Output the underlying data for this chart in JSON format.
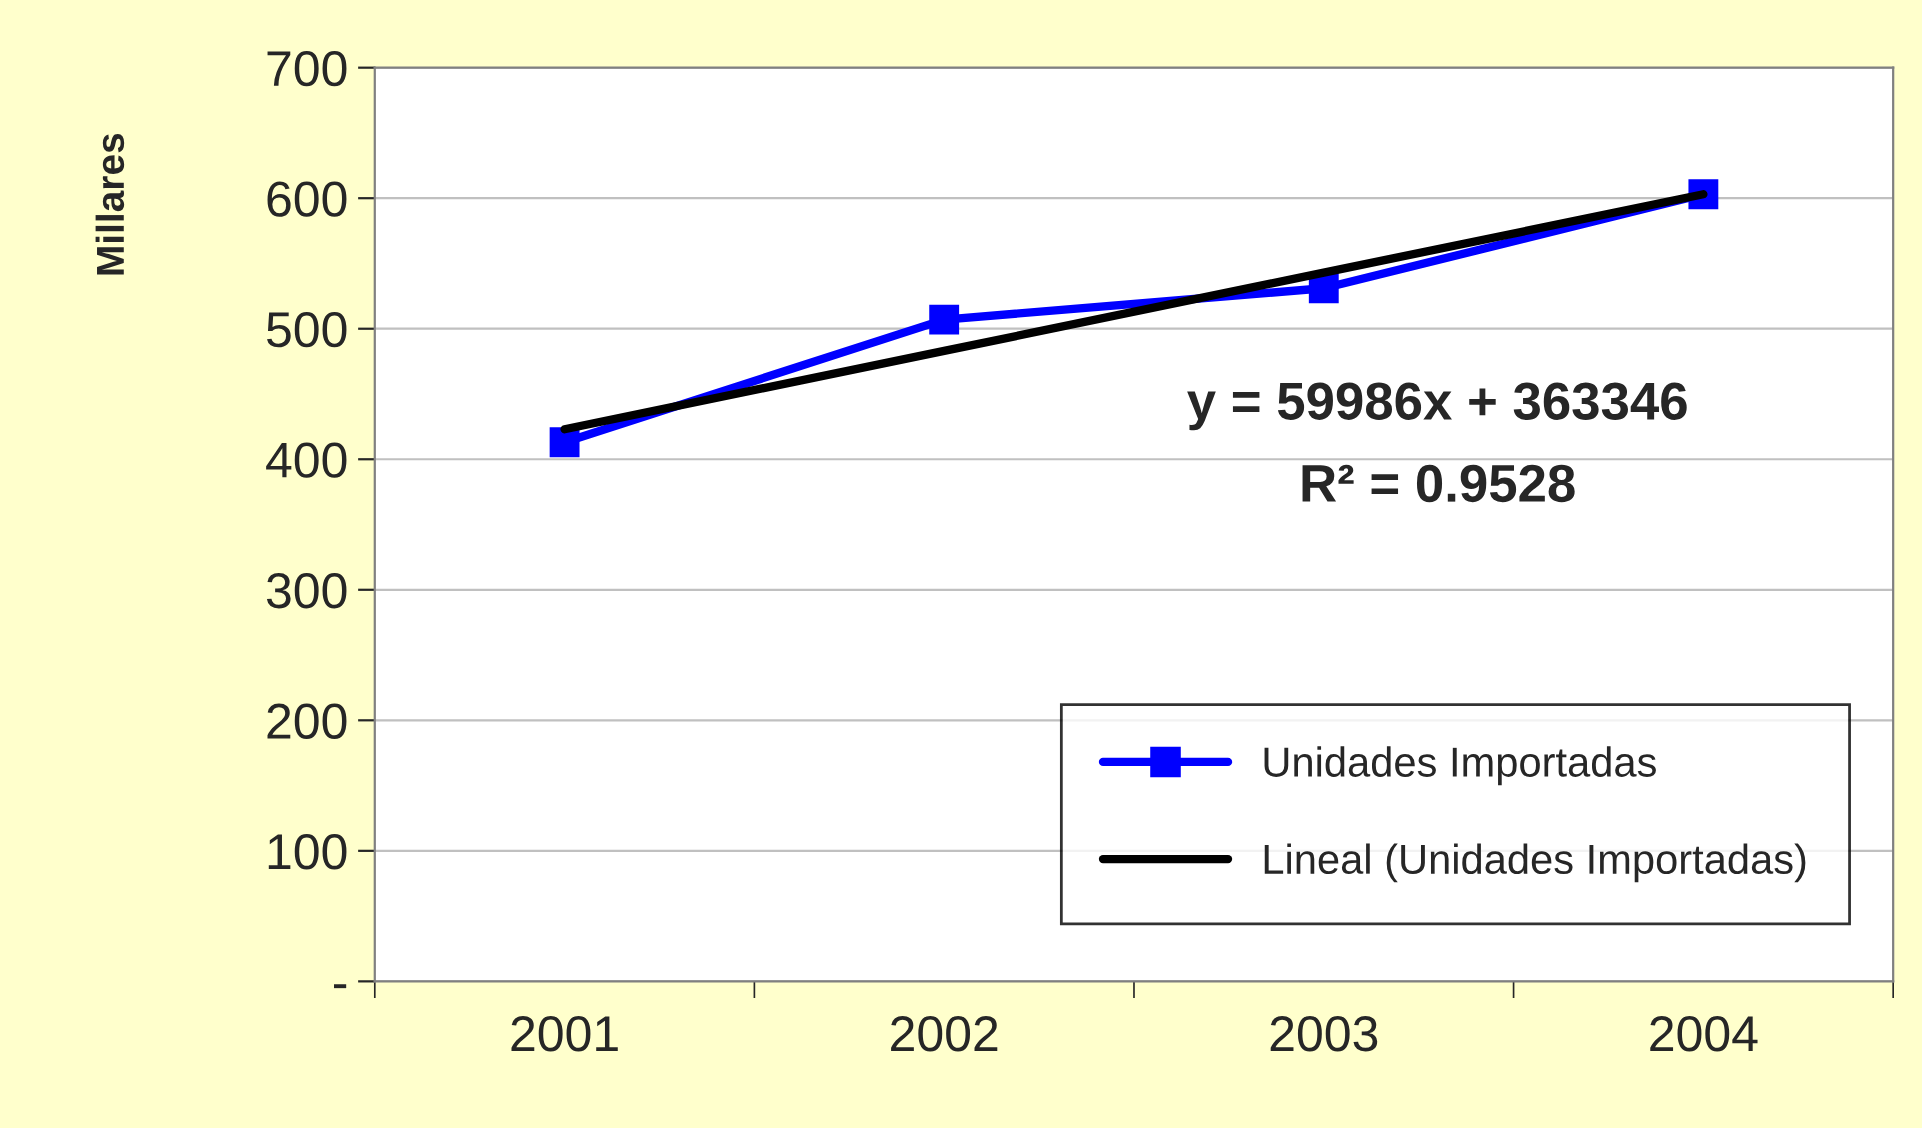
{
  "chart_data": {
    "type": "line",
    "ylabel": "Millares",
    "categories": [
      "2001",
      "2002",
      "2003",
      "2004"
    ],
    "series": [
      {
        "name": "Unidades Importadas",
        "color": "#0000ff",
        "values": [
          413,
          507,
          531,
          603
        ],
        "marker": "square"
      },
      {
        "name": "Lineal (Unidades Importadas)",
        "color": "#000000",
        "values": [
          423,
          483,
          543,
          603
        ],
        "marker": "none"
      }
    ],
    "ylim": [
      0,
      700
    ],
    "yticks": [
      {
        "value": 0,
        "label": "-"
      },
      100,
      200,
      300,
      400,
      500,
      600,
      700
    ],
    "grid": "y",
    "legend": "bottom right",
    "line_style": "solid",
    "annotations": [
      "y = 59986x + 363346",
      "R² = 0.9528"
    ]
  }
}
